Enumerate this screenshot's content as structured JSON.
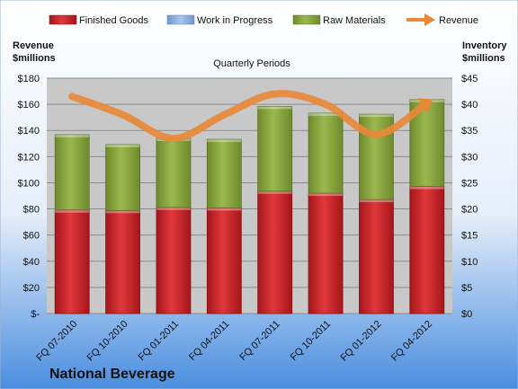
{
  "colors": {
    "finished_goods": "#cc1f24",
    "work_in_progress": "#8fb3e0",
    "raw_materials": "#8aa63d",
    "revenue": "#e8893a",
    "plot_bg": "#c8c8c8",
    "bg_top": "#ffffff",
    "bg_bottom": "#4a8ee0"
  },
  "chart_data": {
    "type": "bar",
    "title": "Quarterly Periods",
    "footer_title": "National Beverage",
    "left_axis_label": [
      "Revenue",
      "$millions"
    ],
    "right_axis_label": [
      "Inventory",
      "$millions"
    ],
    "categories": [
      "FQ 07-2010",
      "FQ 10-2010",
      "FQ 01-2011",
      "FQ 04-2011",
      "FQ 07-2011",
      "FQ 10-2011",
      "FQ 01-2012",
      "FQ 04-2012"
    ],
    "left_ticks": [
      "$-",
      "$20",
      "$40",
      "$60",
      "$80",
      "$100",
      "$120",
      "$140",
      "$160",
      "$180"
    ],
    "right_ticks": [
      "$0",
      "$5",
      "$10",
      "$15",
      "$20",
      "$25",
      "$30",
      "$35",
      "$40",
      "$45"
    ],
    "ylim_inventory": [
      0,
      45
    ],
    "ylim_revenue": [
      0,
      180
    ],
    "grid": true,
    "legend_position": "top",
    "series": [
      {
        "name": "Finished Goods",
        "axis": "right",
        "values": [
          19.8,
          19.7,
          20.3,
          20.2,
          23.4,
          23.0,
          21.8,
          24.3
        ]
      },
      {
        "name": "Work in Progress",
        "axis": "right",
        "values": [
          0,
          0,
          0,
          0,
          0,
          0,
          0,
          0
        ]
      },
      {
        "name": "Raw Materials",
        "axis": "right",
        "values": [
          14.4,
          12.6,
          13.2,
          13.1,
          16.2,
          15.3,
          16.3,
          16.6
        ]
      },
      {
        "name": "Revenue",
        "axis": "left",
        "type": "line",
        "values": [
          166,
          152,
          134,
          152,
          168,
          160,
          137,
          161
        ]
      }
    ]
  }
}
